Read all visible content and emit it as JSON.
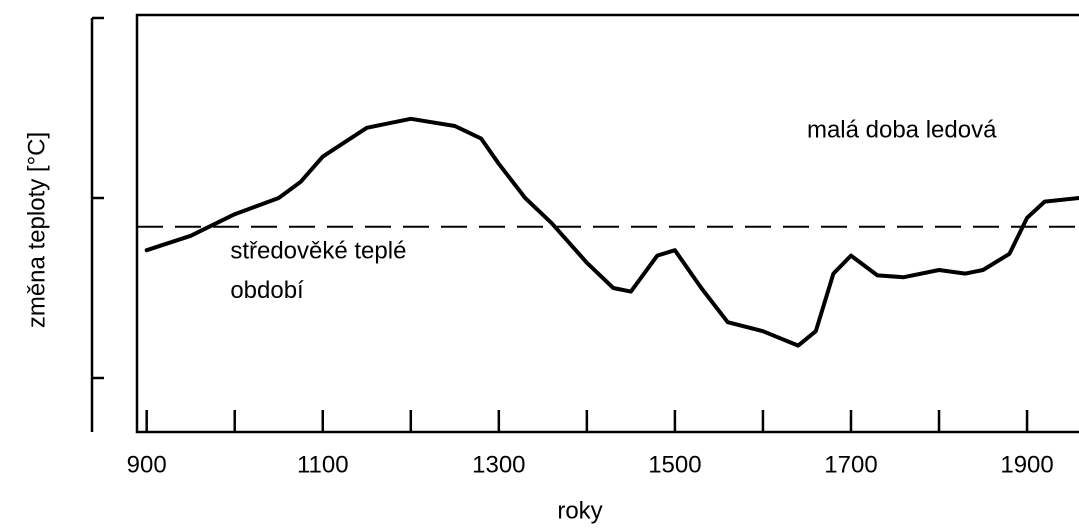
{
  "chart_data": {
    "type": "line",
    "x_label": "roky",
    "y_label": "změna teploty [°C]",
    "annotations": [
      {
        "text": "malá doba ledová",
        "x": 1650,
        "y": 0.37
      },
      {
        "text": "středověké teplé",
        "x": 995,
        "y": -0.3
      },
      {
        "text": "období",
        "x": 995,
        "y": -0.52
      }
    ],
    "reference_line": {
      "value": -0.16,
      "dashed": true
    },
    "series": [
      {
        "color": "#000000",
        "x": [
          900,
          950,
          1000,
          1050,
          1075,
          1100,
          1150,
          1200,
          1250,
          1280,
          1300,
          1330,
          1360,
          1400,
          1430,
          1450,
          1480,
          1500,
          1530,
          1560,
          1600,
          1640,
          1660,
          1680,
          1700,
          1730,
          1760,
          1800,
          1830,
          1850,
          1880,
          1900,
          1920,
          1959
        ],
        "values": [
          -0.29,
          -0.21,
          -0.09,
          0,
          0.09,
          0.23,
          0.39,
          0.44,
          0.4,
          0.33,
          0.19,
          0,
          -0.14,
          -0.36,
          -0.5,
          -0.52,
          -0.32,
          -0.29,
          -0.5,
          -0.69,
          -0.74,
          -0.82,
          -0.74,
          -0.42,
          -0.32,
          -0.43,
          -0.44,
          -0.4,
          -0.42,
          -0.4,
          -0.31,
          -0.11,
          -0.02,
          0
        ]
      }
    ],
    "xlim": [
      889,
      1959
    ],
    "xticks": [
      900,
      1000,
      1100,
      1200,
      1300,
      1400,
      1500,
      1600,
      1700,
      1800,
      1900
    ],
    "xtick_labels_every": 2,
    "ylim": [
      -1.3,
      1.0
    ],
    "yticks": [
      -1,
      0,
      1
    ],
    "ytick_labels": false
  }
}
